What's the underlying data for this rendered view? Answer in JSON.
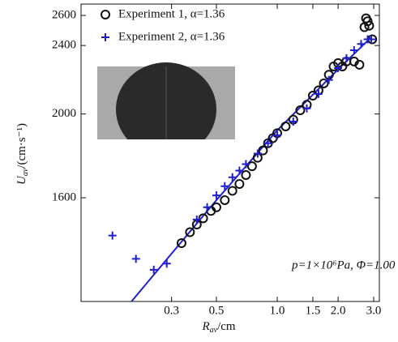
{
  "chart_data": {
    "type": "scatter",
    "xlabel": {
      "main": "R",
      "sub": "av",
      "rest": "/cm"
    },
    "ylabel": {
      "main": "U",
      "sub": "av",
      "rest": "/(cm·s⁻¹)"
    },
    "annotation": "p=1×10⁶Pa, Φ=1.00",
    "xscale": "log",
    "yscale": "log",
    "xlim": [
      0.107,
      3.2
    ],
    "ylim": [
      1214,
      2680
    ],
    "xticks": [
      0.3,
      0.5,
      {
        "value": 1,
        "label": "1.0"
      },
      1.5,
      {
        "value": 2,
        "label": "2.0"
      },
      {
        "value": 3,
        "label": "3.0"
      }
    ],
    "yticks": [
      1600,
      2000,
      2400,
      2600
    ],
    "legend": "upper left",
    "series": [
      {
        "name": "Experiment 1, α=1.36",
        "color": "#111111",
        "marker": "circle",
        "x": [
          0.336,
          0.37,
          0.4,
          0.43,
          0.47,
          0.5,
          0.55,
          0.6,
          0.65,
          0.7,
          0.75,
          0.8,
          0.85,
          0.9,
          0.95,
          1.0,
          1.1,
          1.2,
          1.3,
          1.4,
          1.5,
          1.6,
          1.7,
          1.8,
          1.9,
          2.0,
          2.1,
          2.2,
          2.4,
          2.55,
          2.7,
          2.75,
          2.8,
          2.85,
          2.95
        ],
        "values": [
          1418,
          1460,
          1490,
          1515,
          1545,
          1560,
          1590,
          1630,
          1660,
          1700,
          1740,
          1780,
          1815,
          1850,
          1875,
          1900,
          1935,
          1970,
          2020,
          2050,
          2100,
          2130,
          2170,
          2220,
          2270,
          2290,
          2270,
          2300,
          2300,
          2280,
          2520,
          2580,
          2560,
          2530,
          2440
        ]
      },
      {
        "name": "Experiment 2, α=1.36",
        "color": "#1f1fd0",
        "marker": "plus",
        "x": [
          0.153,
          0.2,
          0.245,
          0.284,
          0.4,
          0.45,
          0.5,
          0.55,
          0.6,
          0.65,
          0.7,
          0.8,
          0.9,
          1.0,
          1.2,
          1.4,
          1.6,
          1.8,
          2.0,
          2.2,
          2.4,
          2.6,
          2.8,
          2.92
        ],
        "values": [
          1447,
          1360,
          1321,
          1343,
          1510,
          1560,
          1610,
          1650,
          1690,
          1720,
          1750,
          1800,
          1850,
          1890,
          1960,
          2030,
          2110,
          2190,
          2260,
          2320,
          2370,
          2410,
          2440,
          2440
        ]
      }
    ],
    "fit": {
      "color": "#1f1fd0",
      "x": [
        0.19,
        0.5,
        1.0,
        2.0,
        2.9
      ],
      "values": [
        1214,
        1590,
        1915,
        2252,
        2450
      ]
    }
  }
}
